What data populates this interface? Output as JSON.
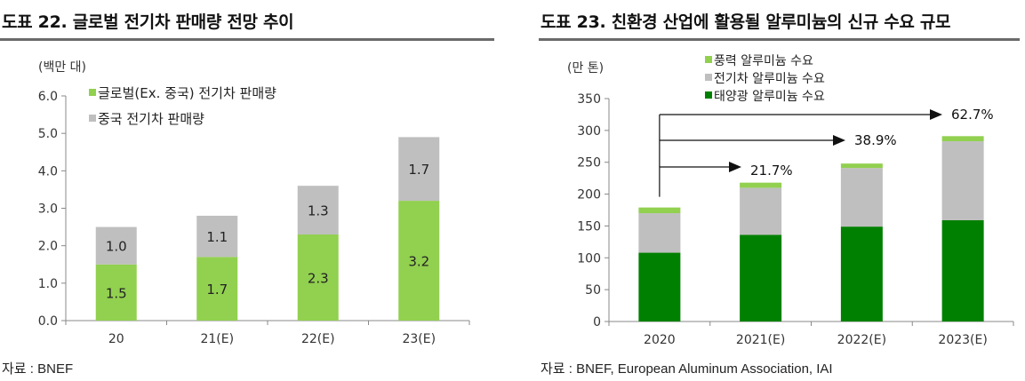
{
  "left": {
    "title": "도표 22. 글로벌 전기차 판매량 전망 추이",
    "source": "자료 : BNEF",
    "unit": "(백만 대)"
  },
  "right": {
    "title": "도표 23. 친환경 산업에 활용될 알루미늄의 신규 수요 규모",
    "source": "자료 : BNEF, European Aluminum Association, IAI",
    "unit": "(만 톤)"
  },
  "chart_data": [
    {
      "type": "bar",
      "stacked": true,
      "title": "도표 22. 글로벌 전기차 판매량 전망 추이",
      "ylabel": "(백만 대)",
      "categories": [
        "20",
        "21(E)",
        "22(E)",
        "23(E)"
      ],
      "ylim": [
        0,
        6
      ],
      "yticks": [
        "0.0",
        "1.0",
        "2.0",
        "3.0",
        "4.0",
        "5.0",
        "6.0"
      ],
      "grid": false,
      "legend": "top-left",
      "series": [
        {
          "name": "글로벌(Ex. 중국) 전기차 판매량",
          "values": [
            1.5,
            1.7,
            2.3,
            3.2
          ],
          "labels": [
            "1.5",
            "1.7",
            "2.3",
            "3.2"
          ],
          "color": "#92d050"
        },
        {
          "name": "중국 전기차 판매량",
          "values": [
            1.0,
            1.1,
            1.3,
            1.7
          ],
          "labels": [
            "1.0",
            "1.1",
            "1.3",
            "1.7"
          ],
          "color": "#bfbfbf"
        }
      ]
    },
    {
      "type": "bar",
      "stacked": true,
      "title": "도표 23. 친환경 산업에 활용될 알루미늄의 신규 수요 규모",
      "ylabel": "(만 톤)",
      "categories": [
        "2020",
        "2021(E)",
        "2022(E)",
        "2023(E)"
      ],
      "ylim": [
        0,
        350
      ],
      "yticks": [
        "0",
        "50",
        "100",
        "150",
        "200",
        "250",
        "300",
        "350"
      ],
      "grid": false,
      "legend": "top-center",
      "series": [
        {
          "name": "태양광 알루미늄 수요",
          "values": [
            108,
            136,
            149,
            159
          ],
          "color": "#008000"
        },
        {
          "name": "전기차 알루미늄 수요",
          "values": [
            62,
            74,
            92,
            124
          ],
          "color": "#bfbfbf"
        },
        {
          "name": "풍력 알루미늄 수요",
          "values": [
            9,
            8,
            7,
            8
          ],
          "color": "#92d050"
        }
      ],
      "legend_order": [
        "풍력 알루미늄 수요",
        "전기차 알루미늄 수요",
        "태양광 알루미늄 수요"
      ],
      "annotations": [
        {
          "label": "21.7%",
          "target": "2021(E)"
        },
        {
          "label": "38.9%",
          "target": "2022(E)"
        },
        {
          "label": "62.7%",
          "target": "2023(E)"
        }
      ]
    }
  ]
}
